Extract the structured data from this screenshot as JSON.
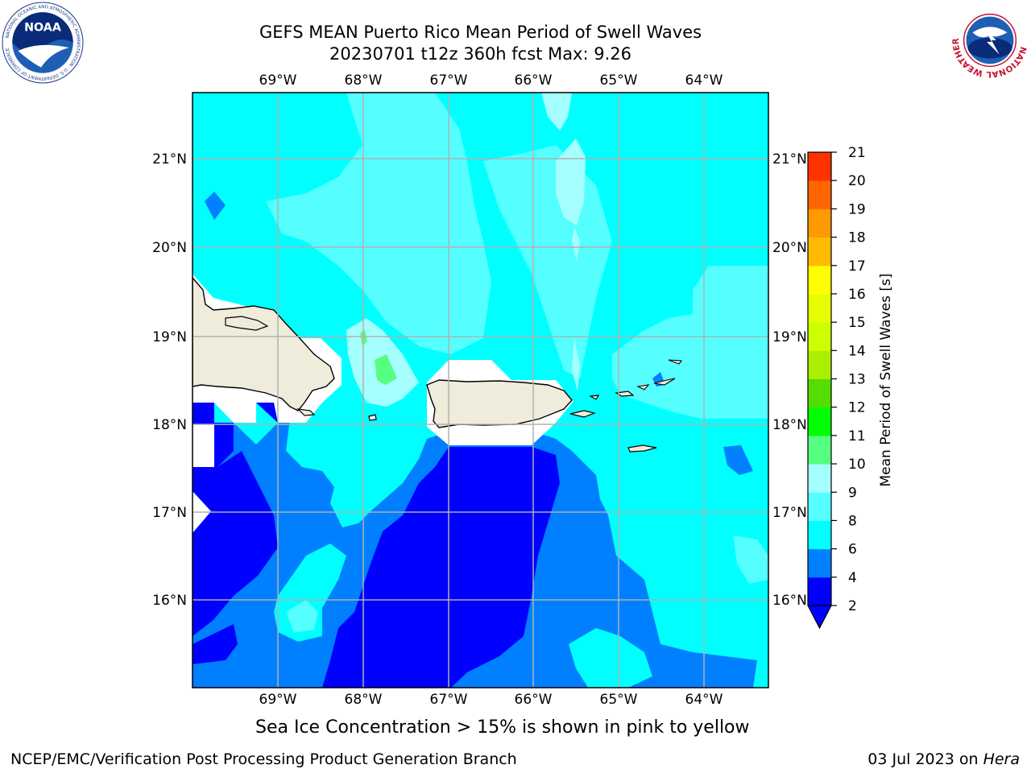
{
  "header": {
    "title_line1": "GEFS MEAN Puerto Rico Mean Period of Swell Waves",
    "title_line2": "20230701 t12z 360h fcst   Max: 9.26"
  },
  "logos": {
    "left": "NOAA",
    "left_ring_text": "NATIONAL OCEANIC AND ATMOSPHERIC ADMINISTRATION · U.S. DEPARTMENT OF COMMERCE",
    "right_ring_text": "NATIONAL WEATHER SERVICE"
  },
  "map": {
    "lon_labels": [
      "69°W",
      "68°W",
      "67°W",
      "66°W",
      "65°W",
      "64°W"
    ],
    "lat_labels": [
      "21°N",
      "20°N",
      "19°N",
      "18°N",
      "17°N",
      "16°N"
    ],
    "grid": true,
    "land_color": "#efecdc",
    "masked_color": "#ffffff"
  },
  "colorbar": {
    "label": "Mean Period of Swell Waves [s]",
    "ticks": [
      "2",
      "4",
      "6",
      "8",
      "9",
      "10",
      "11",
      "12",
      "13",
      "14",
      "15",
      "16",
      "17",
      "18",
      "19",
      "20",
      "21"
    ],
    "colors": [
      "#0000ff",
      "#0080ff",
      "#00ffff",
      "#55ffff",
      "#a6ffff",
      "#55ff80",
      "#00ff00",
      "#55dd00",
      "#aaee00",
      "#ccff00",
      "#e6ff00",
      "#ffff00",
      "#ffbb00",
      "#ff9900",
      "#ff6600",
      "#ff3300",
      "#ff0000"
    ],
    "extend": "min"
  },
  "footer": {
    "note": "Sea Ice Concentration > 15% is shown in pink to yellow",
    "credit": "NCEP/EMC/Verification Post Processing Product Generation Branch",
    "date": "03 Jul 2023 on ",
    "host": "Hera"
  }
}
